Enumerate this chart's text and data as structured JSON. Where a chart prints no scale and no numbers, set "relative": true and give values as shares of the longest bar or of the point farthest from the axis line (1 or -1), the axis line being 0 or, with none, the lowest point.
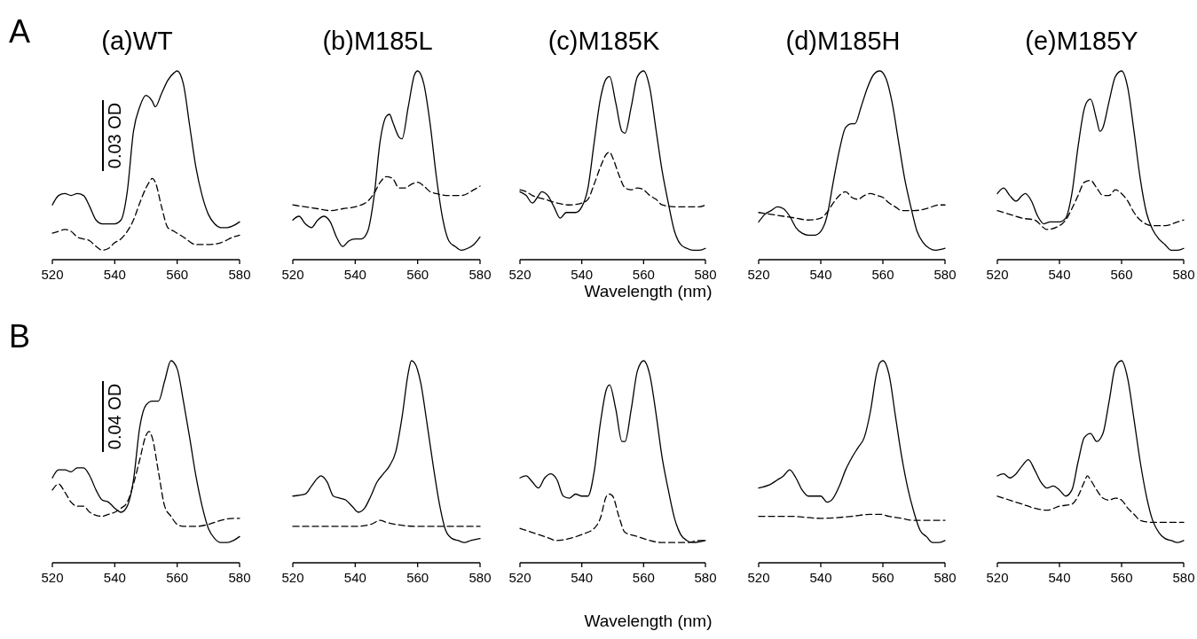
{
  "chart_data": [
    {
      "type": "line",
      "title": "(a)WT",
      "relative": true,
      "xlim": [
        520,
        580
      ],
      "xticks": [
        520,
        540,
        560,
        580
      ],
      "annotations": [
        "A",
        "0.03 OD"
      ],
      "series": [
        {
          "color": "#000000",
          "line_style": "solid",
          "x": [
            520,
            522,
            524,
            526,
            528,
            530,
            532,
            534,
            536,
            540,
            542,
            544,
            546,
            548,
            550,
            552,
            553,
            555,
            557,
            559,
            560,
            562,
            564,
            566,
            568,
            570,
            572,
            574,
            576,
            578,
            580
          ],
          "values": [
            0.29,
            0.34,
            0.35,
            0.34,
            0.35,
            0.34,
            0.28,
            0.21,
            0.19,
            0.19,
            0.21,
            0.36,
            0.68,
            0.81,
            0.87,
            0.84,
            0.81,
            0.88,
            0.95,
            0.99,
            1,
            0.93,
            0.71,
            0.49,
            0.34,
            0.24,
            0.19,
            0.17,
            0.17,
            0.18,
            0.2
          ]
        },
        {
          "color": "#000000",
          "line_style": "dashed",
          "x": [
            520,
            522,
            524,
            526,
            528,
            530,
            532,
            534,
            536,
            538,
            540,
            542,
            544,
            546,
            548,
            550,
            551,
            552,
            553,
            555,
            557,
            559,
            562,
            566,
            570,
            574,
            578,
            580
          ],
          "values": [
            0.14,
            0.15,
            0.16,
            0.15,
            0.12,
            0.11,
            0.1,
            0.07,
            0.05,
            0.06,
            0.09,
            0.11,
            0.15,
            0.21,
            0.3,
            0.38,
            0.41,
            0.43,
            0.41,
            0.28,
            0.17,
            0.15,
            0.12,
            0.08,
            0.08,
            0.09,
            0.12,
            0.13
          ]
        }
      ]
    },
    {
      "type": "line",
      "title": "(b)M185L",
      "relative": true,
      "xlim": [
        520,
        580
      ],
      "xticks": [
        520,
        540,
        560,
        580
      ],
      "series": [
        {
          "color": "#000000",
          "line_style": "solid",
          "x": [
            520,
            522,
            524,
            526,
            528,
            530,
            532,
            534,
            536,
            538,
            540,
            542,
            544,
            546,
            548,
            550,
            551,
            552,
            554,
            555,
            557,
            559,
            560,
            562,
            564,
            566,
            568,
            570,
            572,
            574,
            576,
            578,
            580
          ],
          "values": [
            0.21,
            0.23,
            0.19,
            0.17,
            0.21,
            0.23,
            0.2,
            0.12,
            0.07,
            0.1,
            0.11,
            0.11,
            0.15,
            0.33,
            0.63,
            0.76,
            0.77,
            0.73,
            0.65,
            0.64,
            0.81,
            0.98,
            1,
            0.93,
            0.72,
            0.44,
            0.22,
            0.1,
            0.07,
            0.05,
            0.06,
            0.08,
            0.12
          ]
        },
        {
          "color": "#000000",
          "line_style": "dashed",
          "x": [
            520,
            524,
            528,
            532,
            536,
            540,
            544,
            546,
            548,
            550,
            552,
            554,
            556,
            558,
            560,
            562,
            564,
            566,
            570,
            574,
            578,
            580
          ],
          "values": [
            0.29,
            0.28,
            0.27,
            0.26,
            0.27,
            0.28,
            0.31,
            0.35,
            0.41,
            0.44,
            0.43,
            0.38,
            0.38,
            0.4,
            0.41,
            0.39,
            0.36,
            0.35,
            0.34,
            0.34,
            0.37,
            0.39
          ]
        }
      ]
    },
    {
      "type": "line",
      "title": "(c)M185K",
      "xlabel": "Wavelength (nm)",
      "relative": true,
      "xlim": [
        520,
        580
      ],
      "xticks": [
        520,
        540,
        560,
        580
      ],
      "series": [
        {
          "color": "#000000",
          "line_style": "solid",
          "x": [
            520,
            522,
            524,
            526,
            527,
            529,
            531,
            533,
            535,
            538,
            540,
            542,
            544,
            546,
            548,
            549,
            551,
            553,
            554,
            556,
            558,
            560,
            562,
            564,
            566,
            568,
            570,
            572,
            574,
            576,
            578,
            580
          ],
          "values": [
            0.36,
            0.34,
            0.3,
            0.34,
            0.36,
            0.34,
            0.28,
            0.22,
            0.25,
            0.25,
            0.28,
            0.38,
            0.62,
            0.85,
            0.96,
            0.97,
            0.83,
            0.68,
            0.67,
            0.81,
            0.97,
            1,
            0.91,
            0.69,
            0.47,
            0.3,
            0.15,
            0.08,
            0.06,
            0.05,
            0.05,
            0.06
          ]
        },
        {
          "color": "#000000",
          "line_style": "dashed",
          "x": [
            520,
            522,
            524,
            528,
            532,
            536,
            540,
            542,
            544,
            546,
            548,
            549,
            550,
            552,
            554,
            556,
            558,
            560,
            562,
            564,
            566,
            570,
            574,
            578,
            580
          ],
          "values": [
            0.37,
            0.36,
            0.34,
            0.32,
            0.3,
            0.29,
            0.3,
            0.32,
            0.4,
            0.49,
            0.56,
            0.57,
            0.54,
            0.45,
            0.38,
            0.37,
            0.38,
            0.37,
            0.34,
            0.32,
            0.29,
            0.28,
            0.28,
            0.28,
            0.29
          ]
        }
      ]
    },
    {
      "type": "line",
      "title": "(d)M185H",
      "relative": true,
      "xlim": [
        520,
        580
      ],
      "xticks": [
        520,
        540,
        560,
        580
      ],
      "series": [
        {
          "color": "#000000",
          "line_style": "solid",
          "x": [
            520,
            522,
            524,
            526,
            528,
            530,
            532,
            534,
            536,
            538,
            540,
            542,
            544,
            546,
            548,
            550,
            551,
            553,
            555,
            557,
            559,
            561,
            563,
            565,
            567,
            569,
            571,
            573,
            575,
            577,
            580
          ],
          "values": [
            0.2,
            0.24,
            0.26,
            0.28,
            0.27,
            0.23,
            0.17,
            0.14,
            0.13,
            0.13,
            0.15,
            0.23,
            0.41,
            0.58,
            0.7,
            0.72,
            0.72,
            0.81,
            0.91,
            0.98,
            1,
            0.96,
            0.83,
            0.63,
            0.43,
            0.28,
            0.15,
            0.09,
            0.06,
            0.05,
            0.06
          ]
        },
        {
          "color": "#000000",
          "line_style": "dashed",
          "x": [
            520,
            524,
            528,
            532,
            536,
            540,
            542,
            544,
            546,
            548,
            550,
            552,
            554,
            556,
            558,
            560,
            562,
            564,
            566,
            570,
            574,
            578,
            580
          ],
          "values": [
            0.25,
            0.24,
            0.23,
            0.22,
            0.21,
            0.22,
            0.25,
            0.3,
            0.34,
            0.36,
            0.33,
            0.32,
            0.34,
            0.35,
            0.34,
            0.33,
            0.3,
            0.28,
            0.26,
            0.26,
            0.27,
            0.29,
            0.29
          ]
        }
      ]
    },
    {
      "type": "line",
      "title": "(e)M185Y",
      "relative": true,
      "xlim": [
        520,
        580
      ],
      "xticks": [
        520,
        540,
        560,
        580
      ],
      "series": [
        {
          "color": "#000000",
          "line_style": "solid",
          "x": [
            520,
            522,
            524,
            526,
            528,
            529,
            531,
            533,
            535,
            537,
            540,
            542,
            544,
            546,
            548,
            549,
            550,
            552,
            553,
            554,
            556,
            558,
            560,
            562,
            564,
            566,
            568,
            570,
            572,
            574,
            576,
            578,
            580
          ],
          "values": [
            0.35,
            0.38,
            0.34,
            0.31,
            0.34,
            0.35,
            0.31,
            0.23,
            0.19,
            0.2,
            0.2,
            0.22,
            0.35,
            0.6,
            0.8,
            0.84,
            0.85,
            0.74,
            0.68,
            0.7,
            0.84,
            0.97,
            1,
            0.91,
            0.68,
            0.43,
            0.25,
            0.16,
            0.11,
            0.08,
            0.05,
            0.05,
            0.06
          ]
        },
        {
          "color": "#000000",
          "line_style": "dashed",
          "x": [
            520,
            524,
            528,
            532,
            536,
            540,
            542,
            544,
            546,
            548,
            550,
            552,
            554,
            556,
            558,
            560,
            562,
            564,
            566,
            570,
            574,
            578,
            580
          ],
          "values": [
            0.26,
            0.24,
            0.22,
            0.21,
            0.16,
            0.18,
            0.21,
            0.27,
            0.34,
            0.41,
            0.42,
            0.38,
            0.34,
            0.34,
            0.37,
            0.35,
            0.31,
            0.25,
            0.21,
            0.18,
            0.18,
            0.2,
            0.21
          ]
        }
      ]
    },
    {
      "type": "line",
      "relative": true,
      "xlim": [
        520,
        580
      ],
      "xticks": [
        520,
        540,
        560,
        580
      ],
      "annotations": [
        "B",
        "0.04 OD"
      ],
      "series": [
        {
          "color": "#000000",
          "line_style": "solid",
          "x": [
            520,
            522,
            524,
            526,
            528,
            530,
            532,
            534,
            536,
            538,
            540,
            542,
            544,
            546,
            548,
            550,
            552,
            554,
            556,
            558,
            560,
            562,
            564,
            566,
            568,
            570,
            572,
            574,
            576,
            578,
            580
          ],
          "values": [
            0.42,
            0.46,
            0.46,
            0.45,
            0.47,
            0.47,
            0.43,
            0.36,
            0.31,
            0.3,
            0.27,
            0.25,
            0.28,
            0.41,
            0.67,
            0.78,
            0.8,
            0.8,
            0.9,
            1,
            0.96,
            0.8,
            0.62,
            0.43,
            0.28,
            0.17,
            0.12,
            0.1,
            0.1,
            0.11,
            0.13
          ]
        },
        {
          "color": "#000000",
          "line_style": "dashed",
          "x": [
            520,
            522,
            524,
            526,
            528,
            530,
            532,
            536,
            538,
            540,
            542,
            544,
            546,
            548,
            550,
            551,
            552,
            554,
            556,
            558,
            560,
            562,
            566,
            570,
            574,
            578,
            580
          ],
          "values": [
            0.36,
            0.39,
            0.35,
            0.3,
            0.28,
            0.28,
            0.25,
            0.23,
            0.24,
            0.25,
            0.27,
            0.3,
            0.39,
            0.51,
            0.63,
            0.65,
            0.62,
            0.45,
            0.28,
            0.23,
            0.19,
            0.18,
            0.18,
            0.19,
            0.21,
            0.22,
            0.22
          ]
        }
      ]
    },
    {
      "type": "line",
      "relative": true,
      "xlim": [
        520,
        580
      ],
      "xticks": [
        520,
        540,
        560,
        580
      ],
      "series": [
        {
          "color": "#000000",
          "line_style": "solid",
          "x": [
            520,
            524,
            526,
            528,
            529,
            531,
            533,
            535,
            537,
            539,
            541,
            543,
            545,
            547,
            549,
            551,
            553,
            555,
            557,
            558,
            559,
            561,
            563,
            565,
            567,
            569,
            571,
            573,
            575,
            577,
            580
          ],
          "values": [
            0.33,
            0.34,
            0.38,
            0.42,
            0.43,
            0.4,
            0.33,
            0.32,
            0.31,
            0.28,
            0.25,
            0.27,
            0.33,
            0.4,
            0.44,
            0.48,
            0.55,
            0.72,
            0.94,
            1,
            0.99,
            0.89,
            0.69,
            0.48,
            0.29,
            0.16,
            0.12,
            0.11,
            0.1,
            0.11,
            0.12
          ]
        },
        {
          "color": "#000000",
          "line_style": "dashed",
          "x": [
            520,
            530,
            540,
            545,
            548,
            550,
            553,
            560,
            565,
            570,
            575,
            580
          ],
          "values": [
            0.18,
            0.18,
            0.18,
            0.19,
            0.21,
            0.2,
            0.19,
            0.18,
            0.18,
            0.18,
            0.18,
            0.18
          ]
        }
      ]
    },
    {
      "type": "line",
      "relative": true,
      "xlabel": "Wavelength (nm)",
      "xlim": [
        520,
        580
      ],
      "xticks": [
        520,
        540,
        560,
        580
      ],
      "series": [
        {
          "color": "#000000",
          "line_style": "solid",
          "x": [
            520,
            522,
            524,
            526,
            528,
            530,
            532,
            534,
            536,
            538,
            540,
            542,
            544,
            546,
            548,
            549,
            551,
            553,
            554,
            556,
            558,
            560,
            562,
            564,
            566,
            568,
            570,
            572,
            574,
            576,
            580
          ],
          "values": [
            0.42,
            0.43,
            0.4,
            0.37,
            0.42,
            0.44,
            0.41,
            0.33,
            0.32,
            0.34,
            0.33,
            0.33,
            0.45,
            0.69,
            0.86,
            0.88,
            0.76,
            0.6,
            0.6,
            0.76,
            0.95,
            1,
            0.93,
            0.74,
            0.52,
            0.36,
            0.22,
            0.14,
            0.11,
            0.1,
            0.11
          ]
        },
        {
          "color": "#000000",
          "line_style": "dashed",
          "x": [
            520,
            522,
            524,
            528,
            532,
            536,
            540,
            544,
            546,
            548,
            549,
            550,
            552,
            554,
            558,
            562,
            566,
            570,
            574,
            578,
            580
          ],
          "values": [
            0.17,
            0.16,
            0.15,
            0.13,
            0.11,
            0.12,
            0.14,
            0.17,
            0.22,
            0.33,
            0.34,
            0.33,
            0.23,
            0.15,
            0.13,
            0.11,
            0.1,
            0.1,
            0.1,
            0.11,
            0.11
          ]
        }
      ]
    },
    {
      "type": "line",
      "relative": true,
      "xlim": [
        520,
        580
      ],
      "xticks": [
        520,
        540,
        560,
        580
      ],
      "series": [
        {
          "color": "#000000",
          "line_style": "solid",
          "x": [
            520,
            524,
            526,
            528,
            530,
            532,
            534,
            536,
            538,
            540,
            542,
            544,
            546,
            548,
            550,
            552,
            554,
            556,
            558,
            559,
            560,
            562,
            564,
            566,
            568,
            570,
            572,
            574,
            576,
            578,
            580
          ],
          "values": [
            0.37,
            0.39,
            0.41,
            0.43,
            0.46,
            0.42,
            0.36,
            0.33,
            0.33,
            0.33,
            0.3,
            0.32,
            0.38,
            0.46,
            0.52,
            0.57,
            0.62,
            0.75,
            0.94,
            0.99,
            1,
            0.93,
            0.73,
            0.53,
            0.37,
            0.25,
            0.16,
            0.13,
            0.1,
            0.1,
            0.11
          ]
        },
        {
          "color": "#000000",
          "line_style": "dashed",
          "x": [
            520,
            530,
            540,
            550,
            556,
            559,
            562,
            566,
            570,
            574,
            580
          ],
          "values": [
            0.23,
            0.23,
            0.22,
            0.23,
            0.24,
            0.24,
            0.23,
            0.22,
            0.21,
            0.21,
            0.21
          ]
        }
      ]
    },
    {
      "type": "line",
      "relative": true,
      "xlim": [
        520,
        580
      ],
      "xticks": [
        520,
        540,
        560,
        580
      ],
      "series": [
        {
          "color": "#000000",
          "line_style": "solid",
          "x": [
            520,
            522,
            524,
            526,
            528,
            530,
            532,
            534,
            536,
            538,
            540,
            542,
            544,
            546,
            548,
            550,
            552,
            554,
            556,
            558,
            560,
            562,
            564,
            566,
            568,
            570,
            572,
            574,
            576,
            578,
            580
          ],
          "values": [
            0.43,
            0.44,
            0.42,
            0.44,
            0.48,
            0.51,
            0.46,
            0.4,
            0.37,
            0.38,
            0.36,
            0.33,
            0.36,
            0.5,
            0.62,
            0.64,
            0.6,
            0.64,
            0.8,
            0.97,
            1,
            0.91,
            0.71,
            0.5,
            0.33,
            0.21,
            0.15,
            0.12,
            0.11,
            0.1,
            0.11
          ]
        },
        {
          "color": "#000000",
          "line_style": "dashed",
          "x": [
            520,
            524,
            528,
            532,
            536,
            540,
            544,
            546,
            548,
            549,
            550,
            552,
            554,
            556,
            558,
            560,
            562,
            564,
            566,
            570,
            574,
            580
          ],
          "values": [
            0.33,
            0.31,
            0.29,
            0.27,
            0.26,
            0.28,
            0.29,
            0.33,
            0.4,
            0.43,
            0.41,
            0.36,
            0.32,
            0.31,
            0.32,
            0.31,
            0.27,
            0.24,
            0.21,
            0.2,
            0.2,
            0.2
          ]
        }
      ]
    }
  ]
}
